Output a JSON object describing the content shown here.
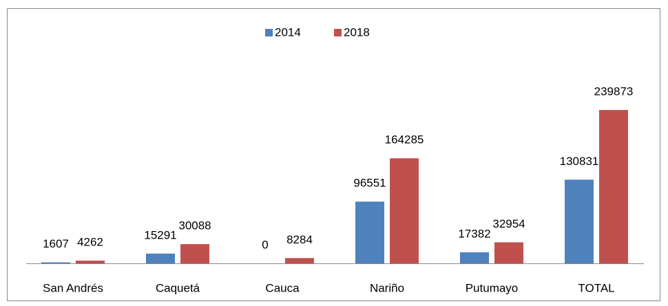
{
  "chart_data": {
    "type": "bar",
    "categories": [
      "San Andrés",
      "Caquetá",
      "Cauca",
      "Nariño",
      "Putumayo",
      "TOTAL"
    ],
    "series": [
      {
        "name": "2014",
        "color": "#4f81bd",
        "values": [
          1607,
          15291,
          0,
          96551,
          17382,
          130831
        ]
      },
      {
        "name": "2018",
        "color": "#c0504d",
        "values": [
          4262,
          30088,
          8284,
          164285,
          32954,
          239873
        ]
      }
    ],
    "ylim": [
      0,
      300000
    ],
    "legend": "top"
  }
}
